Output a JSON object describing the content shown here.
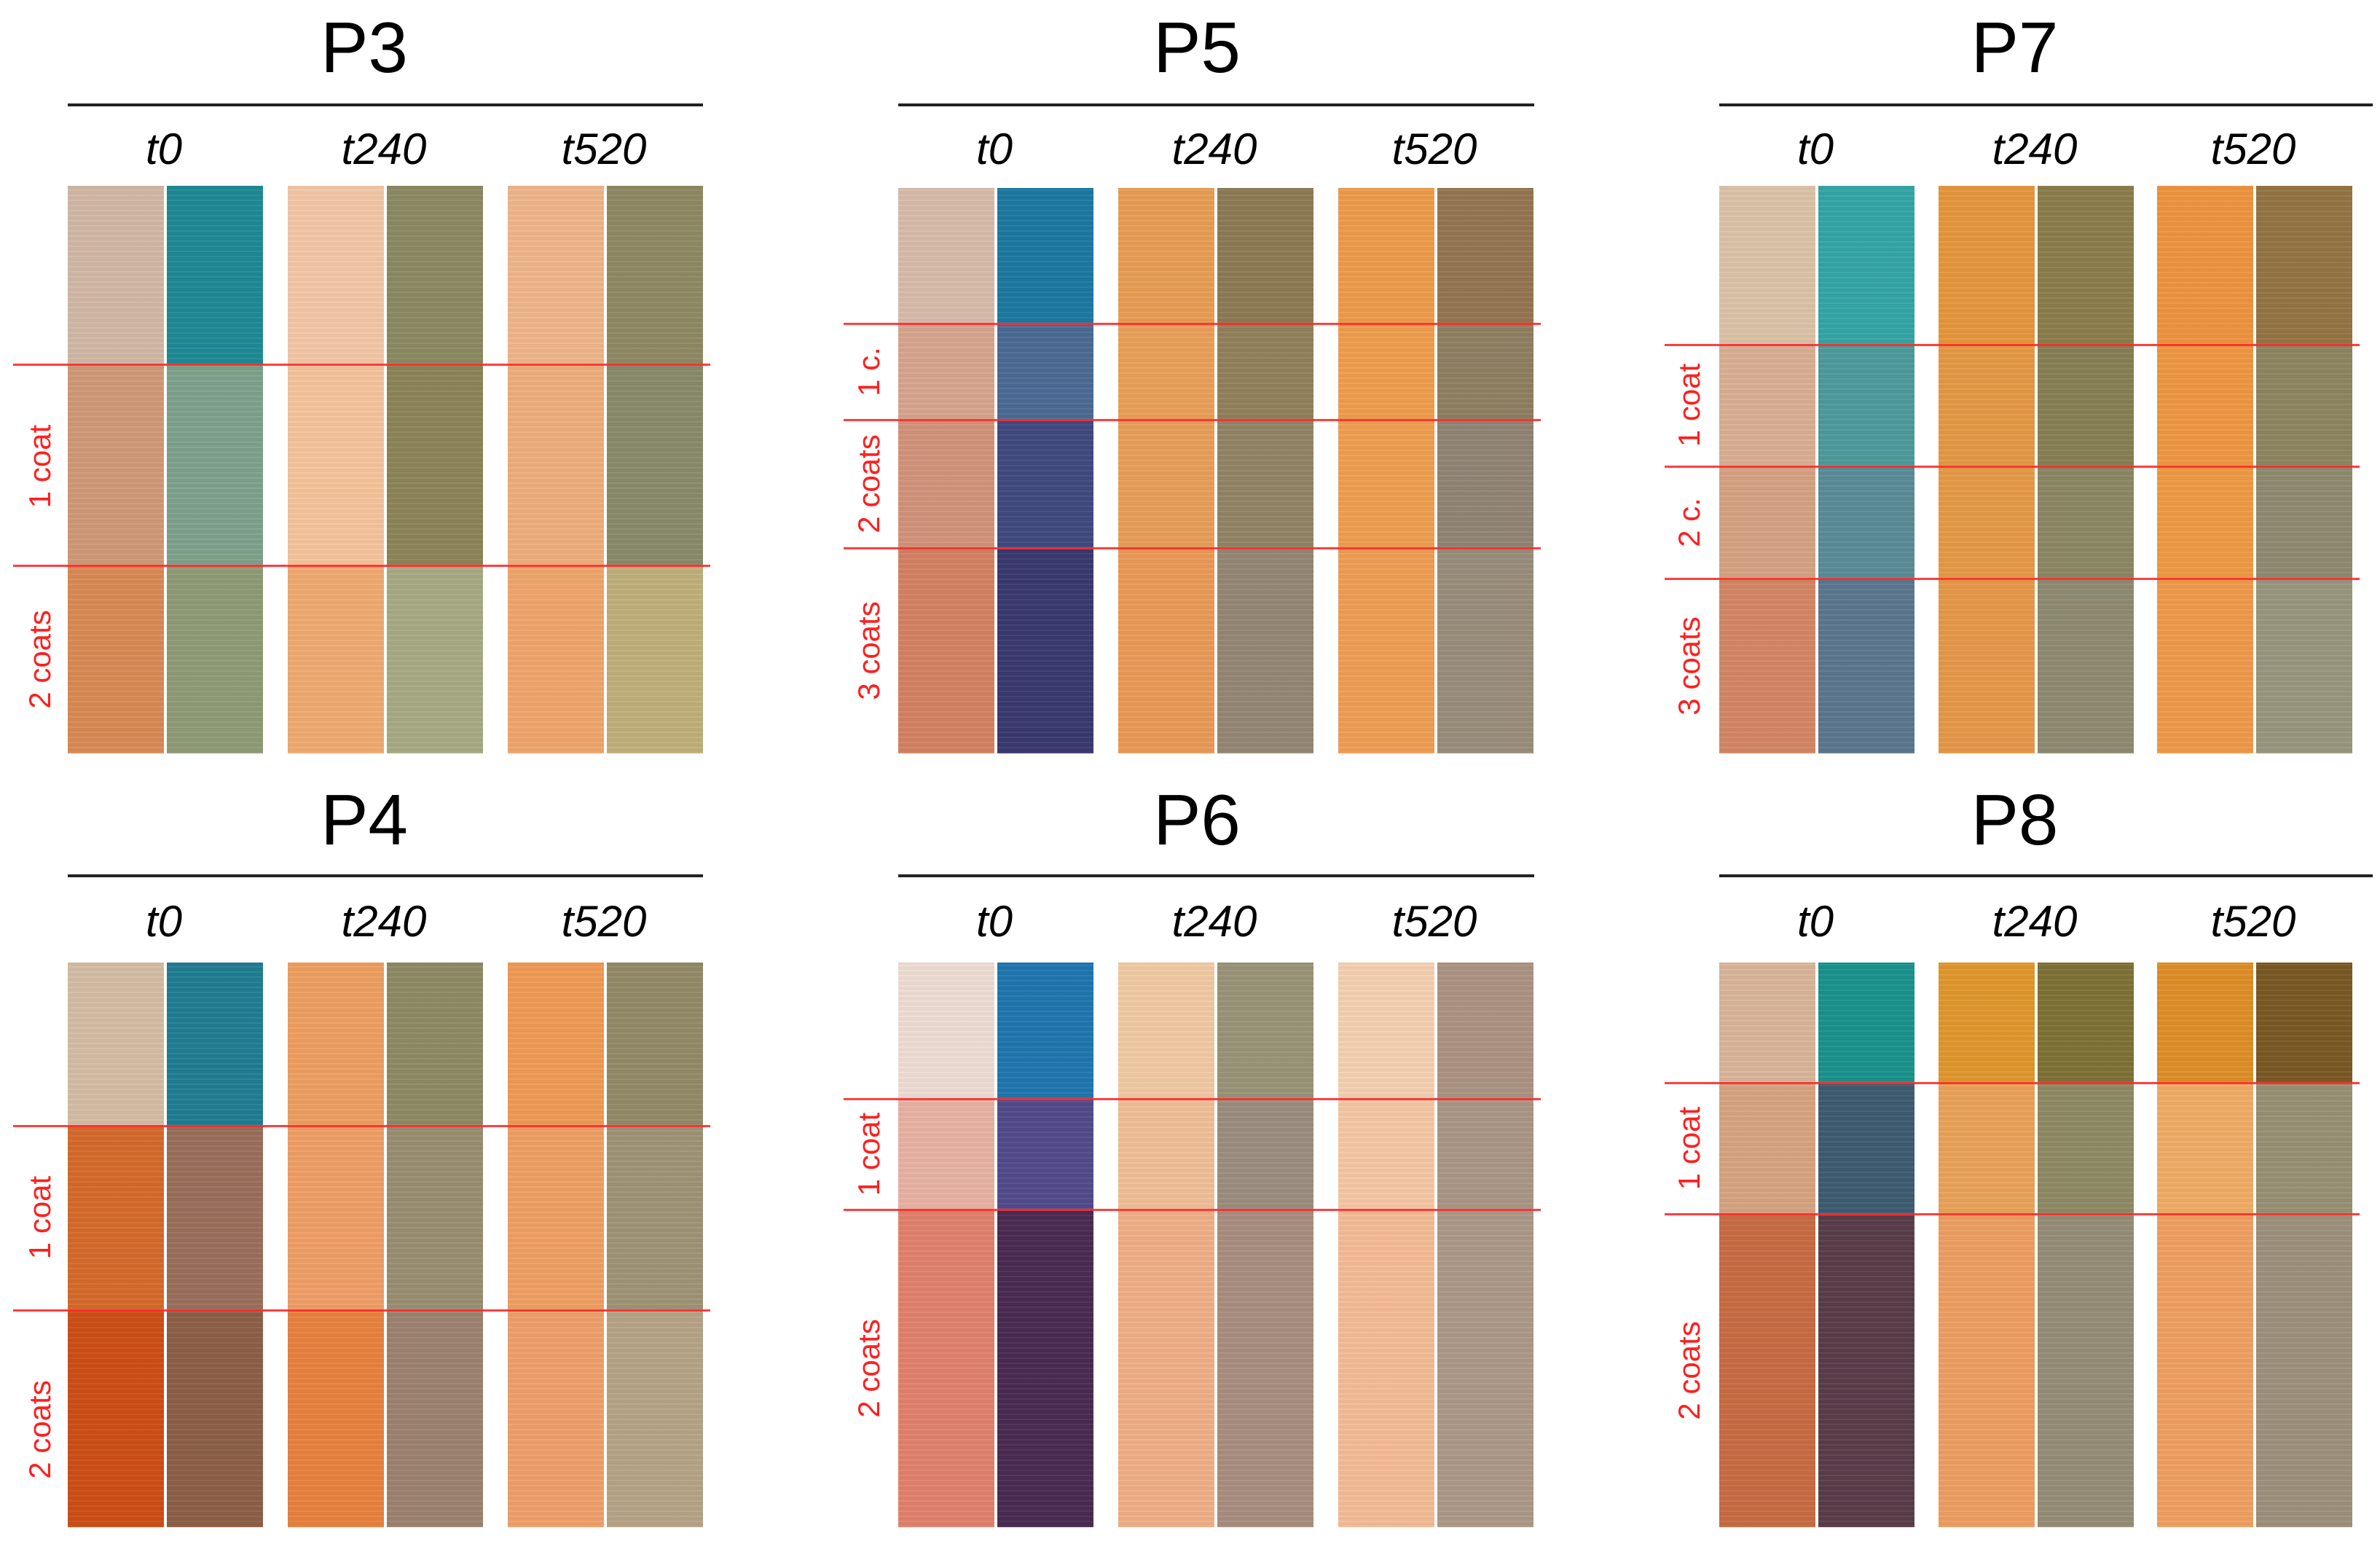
{
  "panels": [
    {
      "title": "P3",
      "time_labels": [
        "t0",
        "t240",
        "t520"
      ],
      "coat_labels": [
        "1 coat",
        "2 coats"
      ],
      "swatches": [
        [
          "#d2b9a6",
          "#1f8a94",
          "#f3c7a7",
          "#8c8a63",
          "#f0b68a",
          "#8f8a64"
        ],
        [
          "#cf9a78",
          "#7fa28b",
          "#f5c49c",
          "#8d8558",
          "#eeae7c",
          "#8a8a6b"
        ],
        [
          "#d98a55",
          "#8f9b76",
          "#f0aa72",
          "#a7aa84",
          "#efa66c",
          "#c0b07c"
        ]
      ]
    },
    {
      "title": "P5",
      "time_labels": [
        "t0",
        "t240",
        "t520"
      ],
      "coat_labels": [
        "1 c.",
        "2 coats",
        "3 coats"
      ],
      "swatches": [
        [
          "#d8bcaa",
          "#1d79a2",
          "#e89e55",
          "#8d7b55",
          "#ee9c4c",
          "#957750"
        ],
        [
          "#d7a58f",
          "#4c6a95",
          "#eaa05a",
          "#92815c",
          "#ef9e4e",
          "#8f7f62"
        ],
        [
          "#d2947b",
          "#404a7f",
          "#e89f5b",
          "#928566",
          "#ef9f50",
          "#908575"
        ],
        [
          "#d58263",
          "#3b3a6f",
          "#ea9a58",
          "#968775",
          "#ef9e55",
          "#9a8d7c"
        ]
      ]
    },
    {
      "title": "P7",
      "time_labels": [
        "t0",
        "t240",
        "t520"
      ],
      "coat_labels": [
        "1 coat",
        "2 c.",
        "3 coats"
      ],
      "swatches": [
        [
          "#dcc3a9",
          "#35a5a6",
          "#e6973e",
          "#8b7d4c",
          "#ee9440",
          "#957543"
        ],
        [
          "#dab094",
          "#4e9b9c",
          "#e59a45",
          "#878055",
          "#ee9844",
          "#8e8562"
        ],
        [
          "#d6a283",
          "#5b8c98",
          "#e59b48",
          "#8c8764",
          "#ef9a46",
          "#8f8b70"
        ],
        [
          "#d48766",
          "#5c778e",
          "#e6994a",
          "#8f8b72",
          "#ef9a4b",
          "#99977e"
        ]
      ]
    },
    {
      "title": "P4",
      "time_labels": [
        "t0",
        "t240",
        "t520"
      ],
      "coat_labels": [
        "1 coat",
        "2 coats"
      ],
      "swatches": [
        [
          "#d4bda4",
          "#217e93",
          "#ee9f62",
          "#8f8a65",
          "#ef9b55",
          "#938a67"
        ],
        [
          "#d66a2c",
          "#9a6f5b",
          "#ef9f68",
          "#9a8e72",
          "#efa064",
          "#a09477"
        ],
        [
          "#cd4e16",
          "#8c5f47",
          "#e8823f",
          "#9d8370",
          "#efa06c",
          "#b7a487"
        ]
      ]
    },
    {
      "title": "P6",
      "time_labels": [
        "t0",
        "t240",
        "t520"
      ],
      "coat_labels": [
        "1 coat",
        "2 coats"
      ],
      "swatches": [
        [
          "#eeddd4",
          "#2077b0",
          "#f2c9a4",
          "#9a9478",
          "#f6d1b2",
          "#ab9483"
        ],
        [
          "#e8b3a3",
          "#534b8c",
          "#f0bf97",
          "#9c8e80",
          "#f6c8a5",
          "#aa9786"
        ],
        [
          "#e1826d",
          "#4a2b52",
          "#f0b087",
          "#a88e80",
          "#f5bc97",
          "#ac9988"
        ]
      ]
    },
    {
      "title": "P8",
      "time_labels": [
        "t0",
        "t240",
        "t520"
      ],
      "coat_labels": [
        "1 coat",
        "2 coats"
      ],
      "swatches": [
        [
          "#d9b69a",
          "#1b938d",
          "#e0982e",
          "#7f7237",
          "#de8e28",
          "#7a5a24"
        ],
        [
          "#d7a482",
          "#3e5c72",
          "#e9a35a",
          "#8f8a65",
          "#f0ac66",
          "#999174"
        ],
        [
          "#c86c43",
          "#5a3e4a",
          "#ed9f62",
          "#968d77",
          "#f0a062",
          "#9e917c"
        ]
      ]
    }
  ]
}
